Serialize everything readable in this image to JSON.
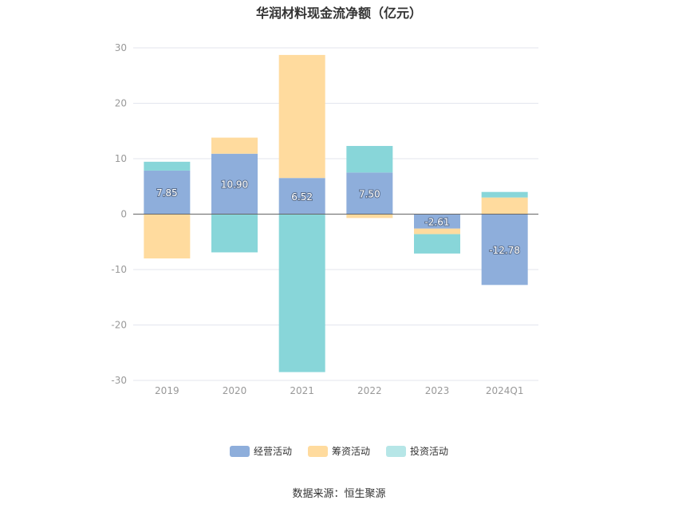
{
  "chart_data": {
    "type": "bar",
    "stacked": true,
    "title": "华润材料现金流净额（亿元）",
    "categories": [
      "2019",
      "2020",
      "2021",
      "2022",
      "2023",
      "2024Q1"
    ],
    "ylim": [
      -30,
      30
    ],
    "yticks": [
      30,
      20,
      10,
      0,
      -10,
      -20,
      -30
    ],
    "grid": true,
    "legend_position": "bottom",
    "series": [
      {
        "name": "经营活动",
        "color": "#8eaedb",
        "values": [
          7.85,
          10.9,
          6.52,
          7.5,
          -2.61,
          -12.78
        ],
        "labels": [
          "7.85",
          "10.90",
          "6.52",
          "7.50",
          "-2.61",
          "-12.78"
        ]
      },
      {
        "name": "筹资活动",
        "color": "#ffdb9e",
        "values": [
          -8.0,
          2.9,
          22.2,
          -0.7,
          -1.0,
          3.0
        ]
      },
      {
        "name": "投资活动",
        "color": "#88d6d9",
        "values": [
          1.6,
          -6.9,
          -28.5,
          4.8,
          -3.5,
          1.0
        ]
      }
    ]
  },
  "source": "数据来源：恒生聚源"
}
